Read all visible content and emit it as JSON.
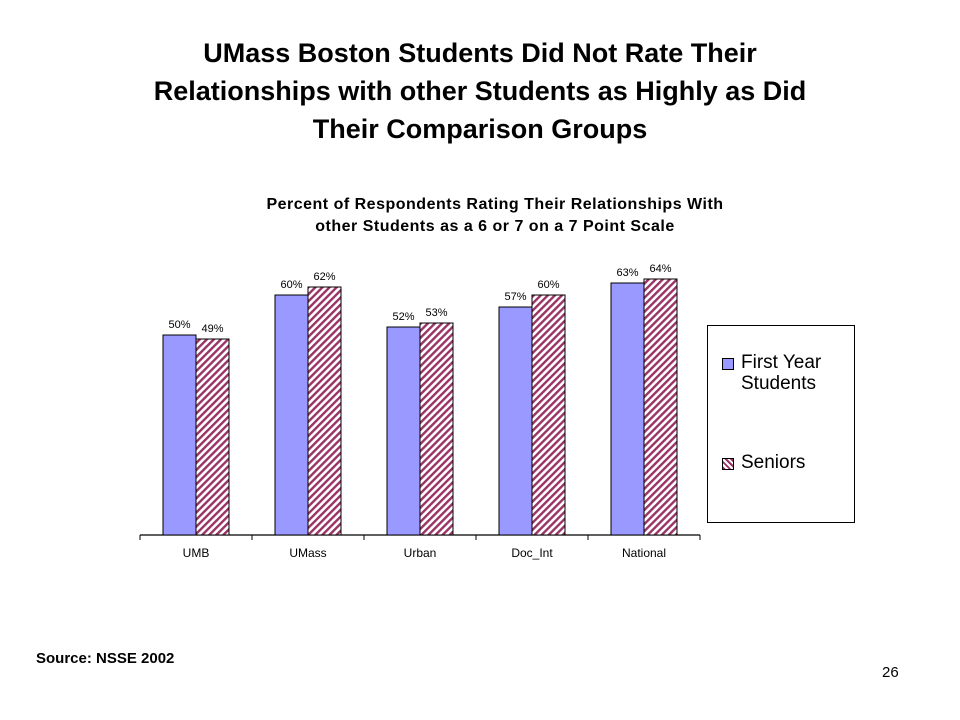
{
  "slide": {
    "title_lines": [
      "UMass Boston Students Did Not Rate Their",
      "Relationships with other Students as Highly as Did",
      "Their Comparison Groups"
    ],
    "source": "Source: NSSE 2002",
    "page_number": "26"
  },
  "chart_data": {
    "type": "bar",
    "title_lines": [
      "Percent of Respondents Rating Their Relationships With",
      "other Students as a 6 or 7 on a 7 Point Scale"
    ],
    "categories": [
      "UMB",
      "UMass",
      "Urban",
      "Doc_Int",
      "National"
    ],
    "series": [
      {
        "name": "First Year Students",
        "values": [
          50,
          60,
          52,
          57,
          63
        ],
        "labels": [
          "50%",
          "60%",
          "52%",
          "57%",
          "63%"
        ],
        "color": "#9999ff",
        "pattern": "solid"
      },
      {
        "name": "Seniors",
        "values": [
          49,
          62,
          53,
          60,
          64
        ],
        "labels": [
          "49%",
          "62%",
          "53%",
          "60%",
          "64%"
        ],
        "color": "#993366",
        "pattern": "diagonal-hatch"
      }
    ],
    "ylim": [
      0,
      100
    ],
    "grid": false,
    "legend_position": "right"
  },
  "legend": {
    "items": [
      {
        "label": "First Year\nStudents"
      },
      {
        "label": "Seniors"
      }
    ]
  }
}
